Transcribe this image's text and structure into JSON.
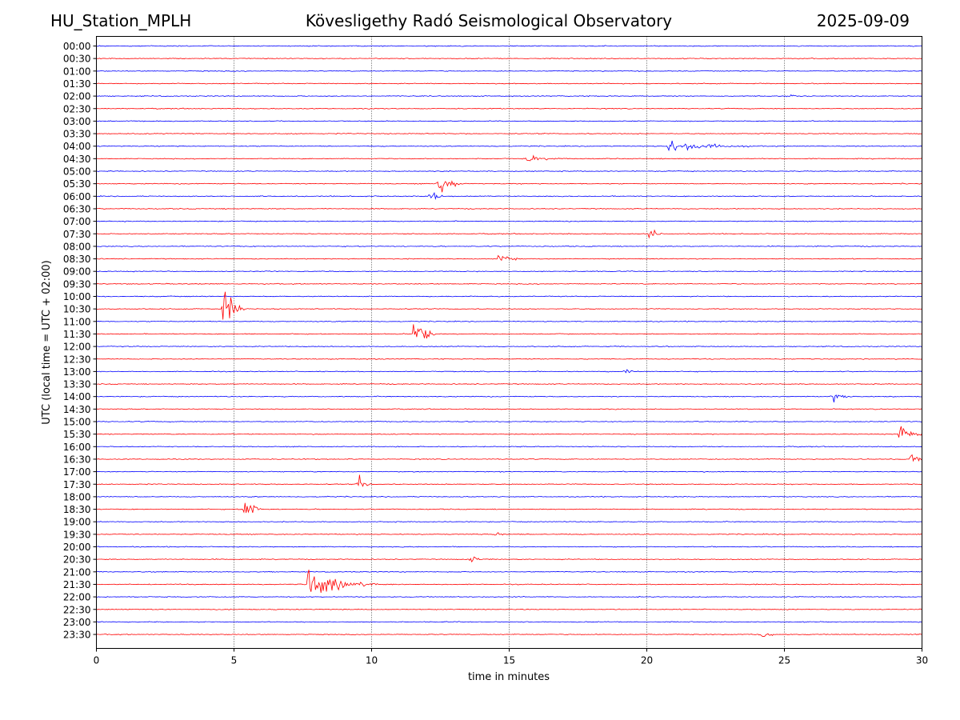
{
  "header": {
    "station": "HU_Station_MPLH",
    "observatory": "Kövesligethy Radó Seismological Observatory",
    "date": "2025-09-09"
  },
  "chart_data": {
    "type": "line",
    "title": "Kövesligethy Radó Seismological Observatory",
    "xlabel": "time in minutes",
    "ylabel": "UTC (local time = UTC + 02:00)",
    "xlim": [
      0,
      30
    ],
    "xticks": [
      0,
      5,
      10,
      15,
      20,
      25,
      30
    ],
    "grid": "vertical dotted lines at x = 5, 10, 15, 20, 25",
    "colors": [
      "#0000ff",
      "#ff0000"
    ],
    "row_labels": [
      "00:00",
      "00:30",
      "01:00",
      "01:30",
      "02:00",
      "02:30",
      "03:00",
      "03:30",
      "04:00",
      "04:30",
      "05:00",
      "05:30",
      "06:00",
      "06:30",
      "07:00",
      "07:30",
      "08:00",
      "08:30",
      "09:00",
      "09:30",
      "10:00",
      "10:30",
      "11:00",
      "11:30",
      "12:00",
      "12:30",
      "13:00",
      "13:30",
      "14:00",
      "14:30",
      "15:00",
      "15:30",
      "16:00",
      "16:30",
      "17:00",
      "17:30",
      "18:00",
      "18:30",
      "19:00",
      "19:30",
      "20:00",
      "20:30",
      "21:00",
      "21:30",
      "22:00",
      "22:30",
      "23:00",
      "23:30"
    ],
    "events": [
      {
        "row": "02:00",
        "minute": 25.1,
        "amplitude": 0.3,
        "duration": 0.4
      },
      {
        "row": "04:00",
        "minute": 20.8,
        "amplitude": 1.0,
        "duration": 3.0
      },
      {
        "row": "04:30",
        "minute": 15.6,
        "amplitude": 0.5,
        "duration": 1.5
      },
      {
        "row": "05:30",
        "minute": 12.4,
        "amplitude": 1.5,
        "duration": 0.8
      },
      {
        "row": "06:00",
        "minute": 12.1,
        "amplitude": 0.5,
        "duration": 0.6
      },
      {
        "row": "07:30",
        "minute": 20.1,
        "amplitude": 0.7,
        "duration": 0.5
      },
      {
        "row": "08:30",
        "minute": 14.6,
        "amplitude": 0.8,
        "duration": 0.7
      },
      {
        "row": "10:30",
        "minute": 4.6,
        "amplitude": 2.5,
        "duration": 0.8
      },
      {
        "row": "11:30",
        "minute": 11.5,
        "amplitude": 2.8,
        "duration": 0.8
      },
      {
        "row": "13:00",
        "minute": 19.2,
        "amplitude": 0.3,
        "duration": 0.6
      },
      {
        "row": "14:00",
        "minute": 26.7,
        "amplitude": 0.6,
        "duration": 0.9
      },
      {
        "row": "15:30",
        "minute": 29.2,
        "amplitude": 1.8,
        "duration": 0.8
      },
      {
        "row": "16:30",
        "minute": 29.6,
        "amplitude": 0.8,
        "duration": 0.4
      },
      {
        "row": "17:30",
        "minute": 9.5,
        "amplitude": 1.2,
        "duration": 0.6
      },
      {
        "row": "18:30",
        "minute": 5.4,
        "amplitude": 1.4,
        "duration": 0.6
      },
      {
        "row": "19:30",
        "minute": 14.5,
        "amplitude": 0.3,
        "duration": 0.5
      },
      {
        "row": "20:30",
        "minute": 13.6,
        "amplitude": 0.4,
        "duration": 0.6
      },
      {
        "row": "21:30",
        "minute": 7.7,
        "amplitude": 1.8,
        "duration": 2.5
      },
      {
        "row": "23:30",
        "minute": 24.2,
        "amplitude": 0.4,
        "duration": 0.5
      }
    ]
  }
}
